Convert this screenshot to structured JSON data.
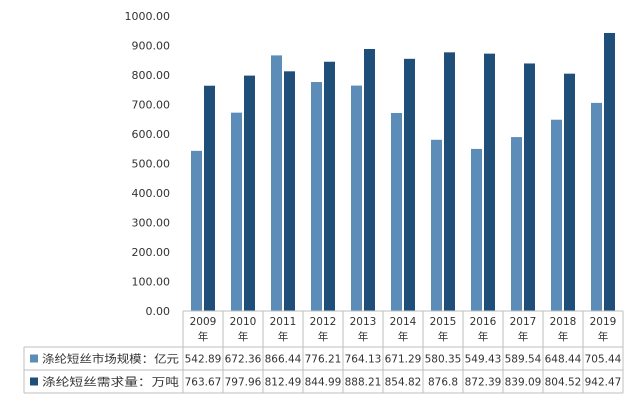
{
  "chart_data": {
    "type": "bar",
    "categories": [
      {
        "year": "2009",
        "suffix": "年"
      },
      {
        "year": "2010",
        "suffix": "年"
      },
      {
        "year": "2011",
        "suffix": "年"
      },
      {
        "year": "2012",
        "suffix": "年"
      },
      {
        "year": "2013",
        "suffix": "年"
      },
      {
        "year": "2014",
        "suffix": "年"
      },
      {
        "year": "2015",
        "suffix": "年"
      },
      {
        "year": "2016",
        "suffix": "年"
      },
      {
        "year": "2017",
        "suffix": "年"
      },
      {
        "year": "2018",
        "suffix": "年"
      },
      {
        "year": "2019",
        "suffix": "年"
      }
    ],
    "series": [
      {
        "name": "涤纶短丝市场规模：亿元",
        "color": "#5b8db8",
        "values": [
          542.89,
          672.36,
          866.44,
          776.21,
          764.13,
          671.29,
          580.35,
          549.43,
          589.54,
          648.44,
          705.44
        ],
        "labels": [
          "542.89",
          "672.36",
          "866.44",
          "776.21",
          "764.13",
          "671.29",
          "580.35",
          "549.43",
          "589.54",
          "648.44",
          "705.44"
        ]
      },
      {
        "name": "涤纶短丝需求量：万吨",
        "color": "#1f4e79",
        "values": [
          763.67,
          797.96,
          812.49,
          844.99,
          888.21,
          854.82,
          876.8,
          872.39,
          839.09,
          804.52,
          942.47
        ],
        "labels": [
          "763.67",
          "797.96",
          "812.49",
          "844.99",
          "888.21",
          "854.82",
          "876.8",
          "872.39",
          "839.09",
          "804.52",
          "942.47"
        ]
      }
    ],
    "ylim": [
      0,
      1000
    ],
    "yticks": [
      "0.00",
      "100.00",
      "200.00",
      "300.00",
      "400.00",
      "500.00",
      "600.00",
      "700.00",
      "800.00",
      "900.00",
      "1000.00"
    ],
    "grid": false,
    "legend": "data-table-left",
    "title": "",
    "xlabel": "",
    "ylabel": ""
  }
}
